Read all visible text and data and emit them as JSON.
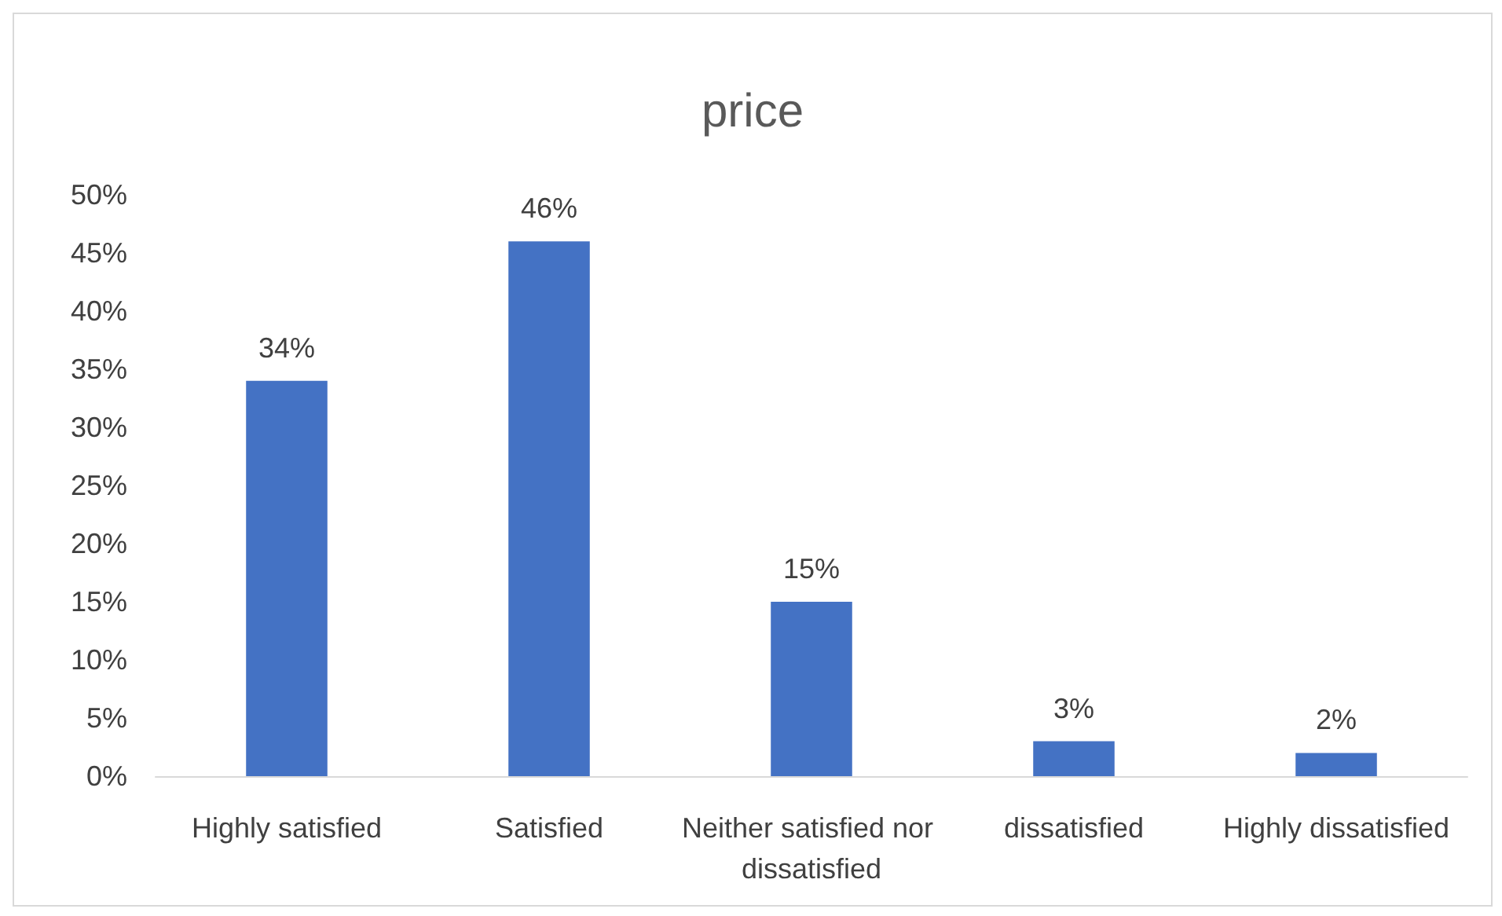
{
  "chart_data": {
    "type": "bar",
    "title": "price",
    "categories": [
      "Highly satisfied",
      "Satisfied",
      "Neither satisfied nor dissatisfied",
      "dissatisfied",
      "Highly dissatisfied"
    ],
    "values": [
      34,
      46,
      15,
      3,
      2
    ],
    "value_labels": [
      "34%",
      "46%",
      "15%",
      "3%",
      "2%"
    ],
    "color": "#4472c4",
    "ylim": [
      0,
      50
    ],
    "yticks": [
      {
        "value": 0,
        "label": "0%"
      },
      {
        "value": 5,
        "label": "5%"
      },
      {
        "value": 10,
        "label": "10%"
      },
      {
        "value": 15,
        "label": "15%"
      },
      {
        "value": 20,
        "label": "20%"
      },
      {
        "value": 25,
        "label": "25%"
      },
      {
        "value": 30,
        "label": "30%"
      },
      {
        "value": 35,
        "label": "35%"
      },
      {
        "value": 40,
        "label": "40%"
      },
      {
        "value": 45,
        "label": "45%"
      },
      {
        "value": 50,
        "label": "50%"
      }
    ],
    "grid": false
  }
}
